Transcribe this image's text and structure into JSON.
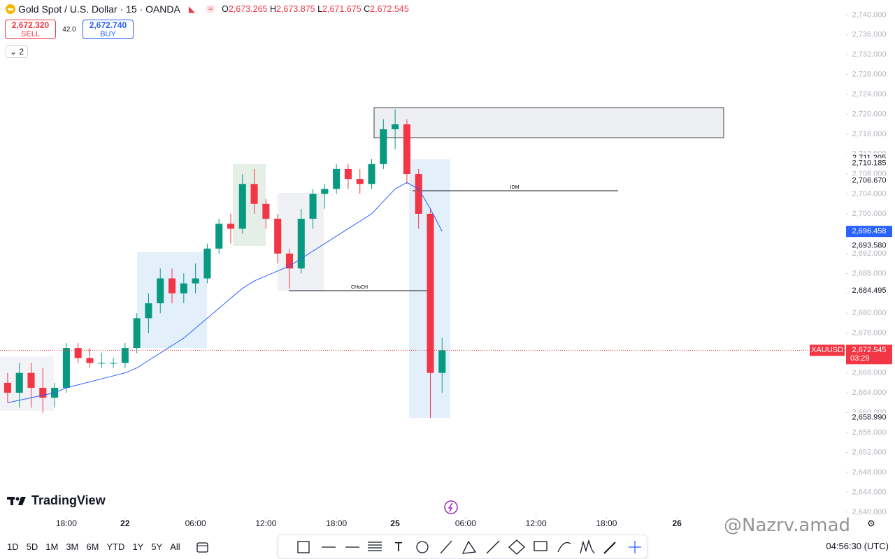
{
  "header": {
    "title": "Gold Spot / U.S. Dollar · 15 · OANDA",
    "o_key": "O",
    "o": "2,673.265",
    "h_key": "H",
    "h": "2,673.875",
    "l_key": "L",
    "l": "2,671.675",
    "c_key": "C",
    "c": "2,672.545"
  },
  "trade": {
    "sell_price": "2,672.320",
    "sell": "SELL",
    "spread": "42.0",
    "buy_price": "2,672.740",
    "buy": "BUY"
  },
  "indicators_count": "2",
  "logo": "TradingView",
  "watermark": "@Nazrv.amad",
  "toolbar": {
    "timeframes": [
      "1D",
      "5D",
      "1M",
      "3M",
      "6M",
      "YTD",
      "1Y",
      "5Y",
      "All"
    ],
    "clock": "04:56:30 (UTC)"
  },
  "chart_data": {
    "type": "candlestick",
    "x": [
      -5,
      -4,
      -3,
      -2,
      -1,
      0,
      1,
      2,
      3,
      4,
      5,
      6,
      7,
      8,
      9,
      10,
      11,
      12,
      13,
      14,
      15,
      16,
      17,
      18,
      19,
      20,
      21,
      22,
      23,
      24,
      25,
      26,
      27,
      28,
      29,
      30,
      31,
      32
    ],
    "open": [
      2666,
      2664,
      2668,
      2665,
      2663,
      2665,
      2673,
      2671,
      2670,
      2670,
      2670,
      2673,
      2679,
      2682,
      2687,
      2684,
      2686,
      2687,
      2693,
      2698,
      2697,
      2706,
      2702,
      2699,
      2692,
      2689,
      2699,
      2704,
      2705,
      2709,
      2707,
      2706,
      2710,
      2717,
      2718,
      2708,
      2700,
      2668
    ],
    "high": [
      2668,
      2670,
      2670,
      2669,
      2666,
      2674,
      2674,
      2673,
      2672,
      2671,
      2674,
      2680,
      2684,
      2689,
      2689,
      2688,
      2690,
      2694,
      2699,
      2700,
      2708,
      2709,
      2703,
      2700,
      2693,
      2701,
      2705,
      2706,
      2710,
      2710,
      2709,
      2711,
      2719,
      2721,
      2719,
      2709,
      2701,
      2675
    ],
    "low": [
      2662,
      2661,
      2661,
      2660,
      2661,
      2664,
      2670,
      2669,
      2669,
      2669,
      2669,
      2672,
      2676,
      2680,
      2682,
      2682,
      2684,
      2686,
      2692,
      2694,
      2696,
      2700,
      2697,
      2690,
      2685,
      2688,
      2697,
      2701,
      2704,
      2705,
      2704,
      2705,
      2709,
      2713,
      2706,
      2697,
      2659,
      2664
    ],
    "close": [
      2664,
      2668,
      2665,
      2663,
      2665,
      2673,
      2671,
      2670,
      2670,
      2670,
      2673,
      2679,
      2682,
      2687,
      2684,
      2686,
      2687,
      2693,
      2698,
      2697,
      2706,
      2702,
      2699,
      2692,
      2689,
      2699,
      2704,
      2705,
      2709,
      2707,
      2706,
      2710,
      2717,
      2718,
      2708,
      2700,
      2668,
      2672.545
    ],
    "up_color": "#089981",
    "down_color": "#f23645",
    "ema": {
      "color": "#2962ff",
      "values": [
        2662,
        2662.5,
        2663,
        2663.5,
        2664,
        2665,
        2665.6,
        2666.2,
        2666.8,
        2667.4,
        2668,
        2669,
        2670.5,
        2672,
        2673.5,
        2675,
        2677,
        2679,
        2681,
        2683,
        2685,
        2686.5,
        2687.5,
        2688.5,
        2689.5,
        2691,
        2692.5,
        2694,
        2695.5,
        2697,
        2698.5,
        2700,
        2702.5,
        2705,
        2706.3,
        2705,
        2701,
        2696.458
      ],
      "label": {
        "value": 2696.458,
        "label": "2,696.458"
      }
    },
    "xlim": [
      -5.65,
      66.4
    ],
    "ylim": [
      2639,
      2743
    ],
    "xticks": [
      {
        "value": 0,
        "label": "18:00"
      },
      {
        "value": 5,
        "label": "22"
      },
      {
        "value": 11,
        "label": "06:00"
      },
      {
        "value": 17,
        "label": "12:00"
      },
      {
        "value": 23,
        "label": "18:00"
      },
      {
        "value": 28,
        "label": "25"
      },
      {
        "value": 34,
        "label": "06:00"
      },
      {
        "value": 40,
        "label": "12:00"
      },
      {
        "value": 46,
        "label": "18:00"
      },
      {
        "value": 52,
        "label": "26"
      }
    ],
    "yticks": [
      {
        "value": 2640,
        "label": "2,640.000"
      },
      {
        "value": 2644,
        "label": "2,644.000"
      },
      {
        "value": 2648,
        "label": "2,648.000"
      },
      {
        "value": 2652,
        "label": "2,652.000"
      },
      {
        "value": 2656,
        "label": "2,656.000"
      },
      {
        "value": 2660,
        "label": "2,660.000"
      },
      {
        "value": 2664,
        "label": "2,664.000"
      },
      {
        "value": 2668,
        "label": "2,668.000"
      },
      {
        "value": 2672,
        "label": "2,672.000"
      },
      {
        "value": 2676,
        "label": "2,676.000"
      },
      {
        "value": 2680,
        "label": "2,680.000"
      },
      {
        "value": 2684,
        "label": "2,684.000"
      },
      {
        "value": 2688,
        "label": "2,688.000"
      },
      {
        "value": 2692,
        "label": "2,692.000"
      },
      {
        "value": 2696,
        "label": "2,696.000"
      },
      {
        "value": 2700,
        "label": "2,700.000"
      },
      {
        "value": 2704,
        "label": "2,704.000"
      },
      {
        "value": 2708,
        "label": "2,708.000"
      },
      {
        "value": 2712,
        "label": "2,712.000"
      },
      {
        "value": 2716,
        "label": "2,716.000"
      },
      {
        "value": 2720,
        "label": "2,720.000"
      },
      {
        "value": 2724,
        "label": "2,724.000"
      },
      {
        "value": 2728,
        "label": "2,728.000"
      },
      {
        "value": 2732,
        "label": "2,732.000"
      },
      {
        "value": 2736,
        "label": "2,736.000"
      },
      {
        "value": 2740,
        "label": "2,740.000"
      }
    ],
    "price_labels": [
      {
        "value": 2711.205,
        "label": "2,711.205"
      },
      {
        "value": 2710.185,
        "label": "2,710.185"
      },
      {
        "value": 2706.67,
        "label": "2,706.670"
      },
      {
        "value": 2693.58,
        "label": "2,693.580"
      },
      {
        "value": 2684.495,
        "label": "2,684.495"
      },
      {
        "value": 2658.99,
        "label": "2,658.990"
      }
    ],
    "current": {
      "value": 2672.545,
      "label": "2,672.545",
      "symbol": "XAUUSD",
      "countdown": "03:29",
      "color": "#f23645"
    },
    "annotations": [
      {
        "text": "CHoCH"
      },
      {
        "text": "IDM"
      }
    ]
  }
}
